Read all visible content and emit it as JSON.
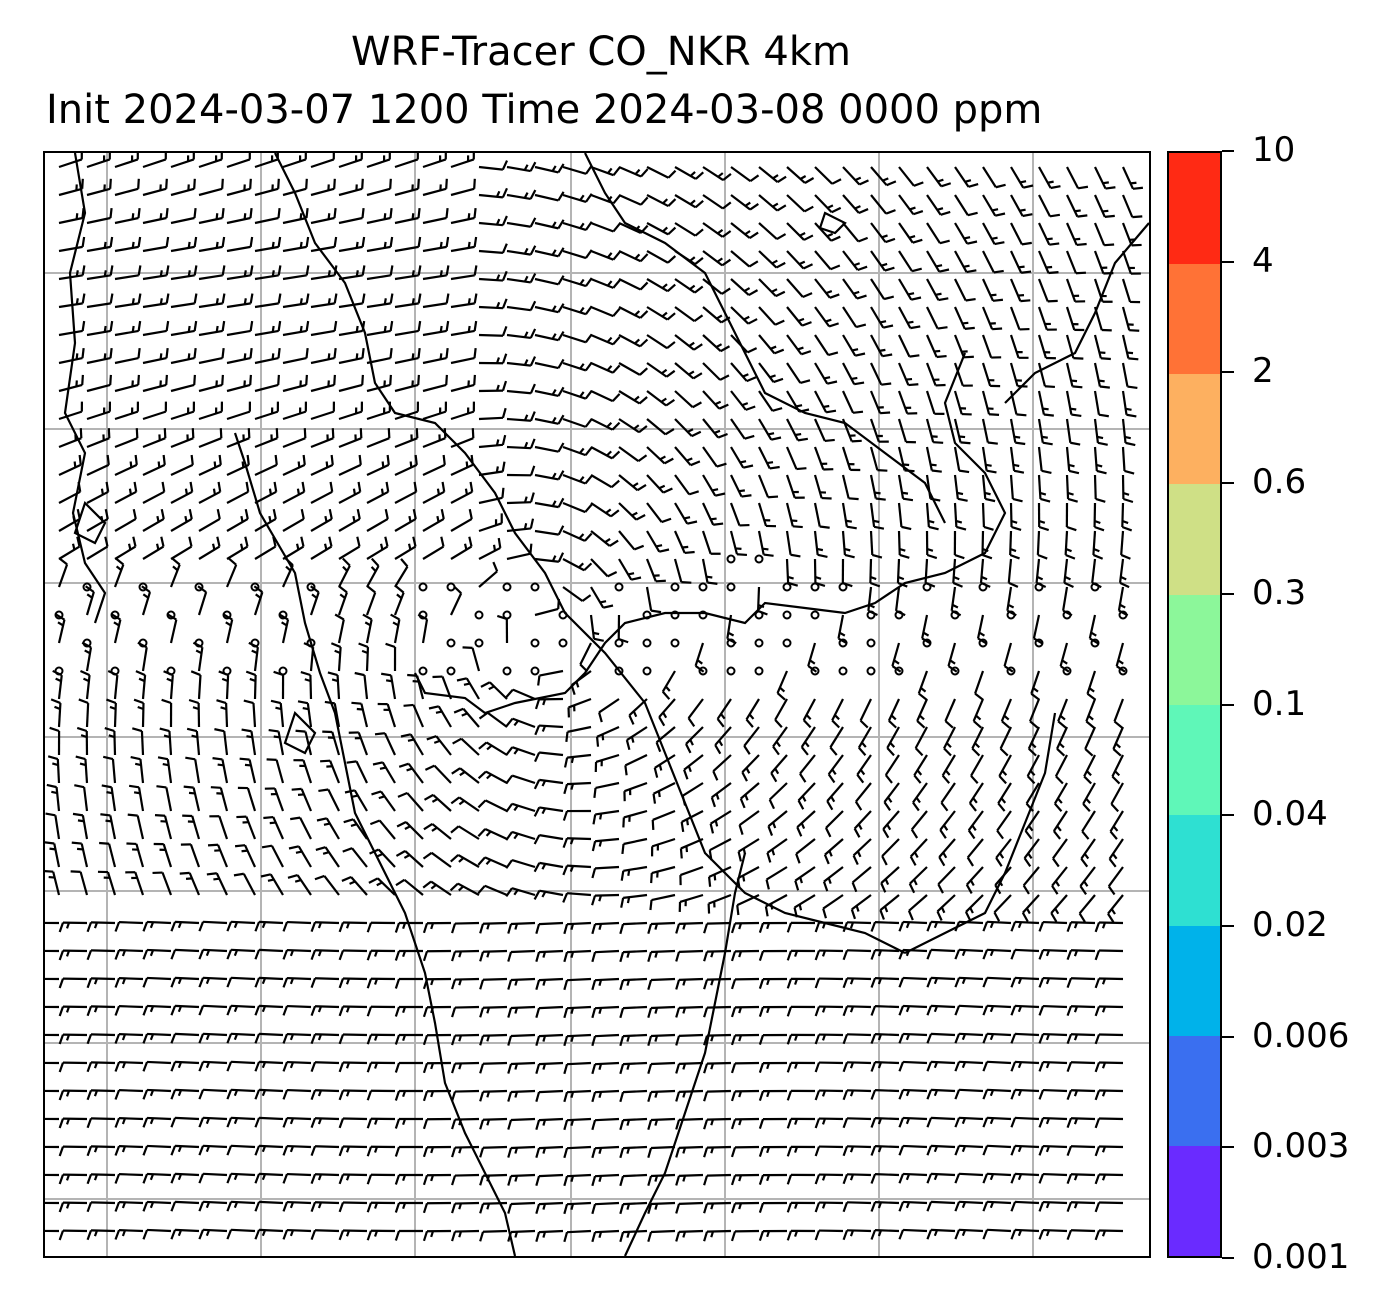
{
  "title": {
    "line1": "WRF-Tracer CO_NKR 4km",
    "line2": "Init 2024-03-07 1200 Time 2024-03-08 0000 ppm"
  },
  "colorbar": {
    "ticks": [
      "0.001",
      "0.003",
      "0.006",
      "0.02",
      "0.04",
      "0.1",
      "0.3",
      "0.6",
      "2",
      "4",
      "10"
    ],
    "colors": [
      "#6a2bff",
      "#3a6ff0",
      "#00b2ea",
      "#2ee0d2",
      "#5ff7b8",
      "#8cf79a",
      "#cfe086",
      "#fdb060",
      "#ff7236",
      "#ff2a14"
    ]
  },
  "map": {
    "gridline_color": "#b4b4b4",
    "barb_color": "#000000",
    "coastline_color": "#000000",
    "calm_marker": "small open circle"
  }
}
